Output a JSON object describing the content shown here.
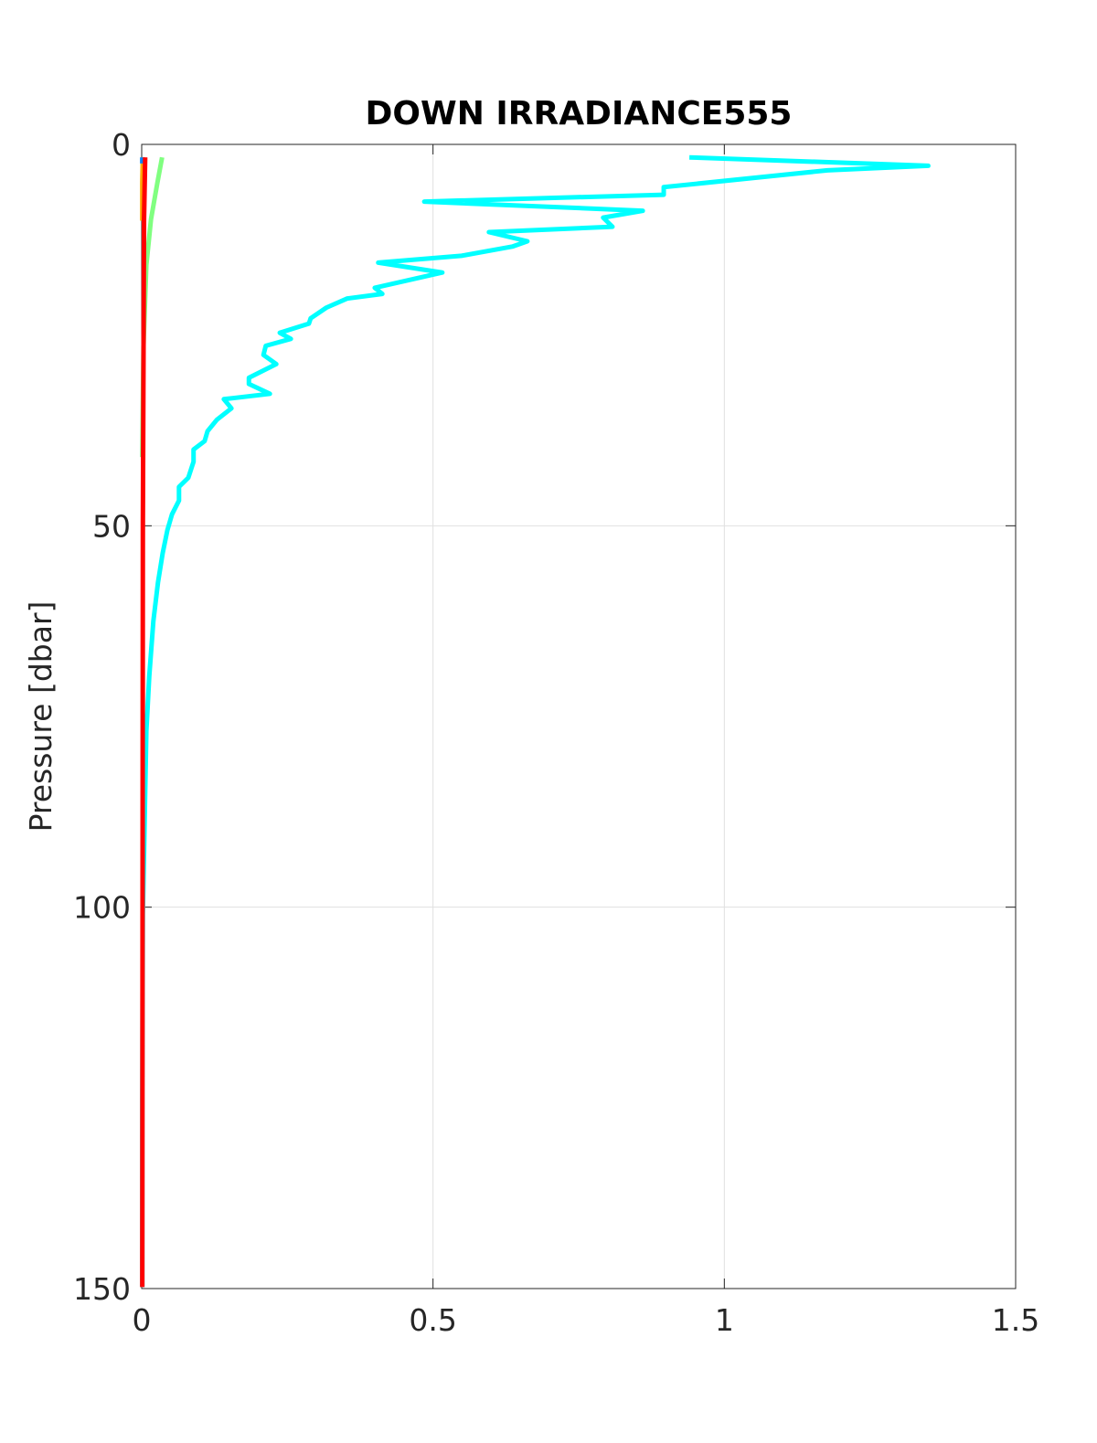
{
  "chart_data": {
    "type": "line",
    "title": "DOWN IRRADIANCE555",
    "y_label": "Pressure [dbar]",
    "xlim": [
      0,
      1.5
    ],
    "xticks": [
      0,
      0.5,
      1,
      1.5
    ],
    "ylim": [
      0,
      150
    ],
    "yticks": [
      0,
      50,
      100,
      150
    ],
    "y_inverted": true,
    "grid": true,
    "series": [
      {
        "color": "#00ffff",
        "pressure": [
          1.7,
          2.8,
          3.4,
          5.6,
          6.6,
          7.5,
          8.7,
          9.6,
          10.8,
          11.5,
          12.7,
          13.4,
          14.6,
          15.5,
          16.8,
          18.8,
          19.6,
          20.2,
          21.4,
          22.8,
          23.5,
          24.7,
          25.5,
          26.4,
          27.6,
          28.8,
          30.6,
          31.4,
          32.7,
          33.4,
          34.6,
          36.1,
          37.6,
          38.9,
          40.0,
          41.6,
          43.7,
          44.9,
          46.7,
          48.5,
          50.6,
          53.6,
          57.4,
          62.5,
          69.7,
          76.9,
          88.9,
          100.9,
          124.8,
          149.8
        ],
        "values": [
          0.94,
          1.35,
          1.177,
          0.896,
          0.896,
          0.485,
          0.86,
          0.792,
          0.808,
          0.596,
          0.662,
          0.636,
          0.549,
          0.406,
          0.516,
          0.4,
          0.413,
          0.353,
          0.317,
          0.29,
          0.287,
          0.237,
          0.256,
          0.213,
          0.209,
          0.231,
          0.184,
          0.184,
          0.22,
          0.141,
          0.154,
          0.129,
          0.113,
          0.108,
          0.089,
          0.089,
          0.08,
          0.064,
          0.064,
          0.052,
          0.044,
          0.036,
          0.028,
          0.02,
          0.013,
          0.008,
          0.005,
          0.002,
          0.001,
          0.001
        ]
      },
      {
        "color": "#80ff80",
        "pressure": [
          1.7,
          5,
          9.8,
          15.8,
          26.6,
          41
        ],
        "values": [
          0.035,
          0.027,
          0.016,
          0.008,
          0.003,
          0.001
        ]
      },
      {
        "color": "#ffa500",
        "pressure": [
          1.7,
          5,
          10
        ],
        "values": [
          0.002,
          0.001,
          0.001
        ]
      },
      {
        "color": "#0080ff",
        "pressure": [
          1.7,
          2.5
        ],
        "values": [
          0.001,
          0.001
        ]
      },
      {
        "color": "#ff0000",
        "pressure": [
          1.7,
          10,
          50,
          149.8
        ],
        "values": [
          0.006,
          0.004,
          0.002,
          0.001
        ]
      }
    ]
  }
}
